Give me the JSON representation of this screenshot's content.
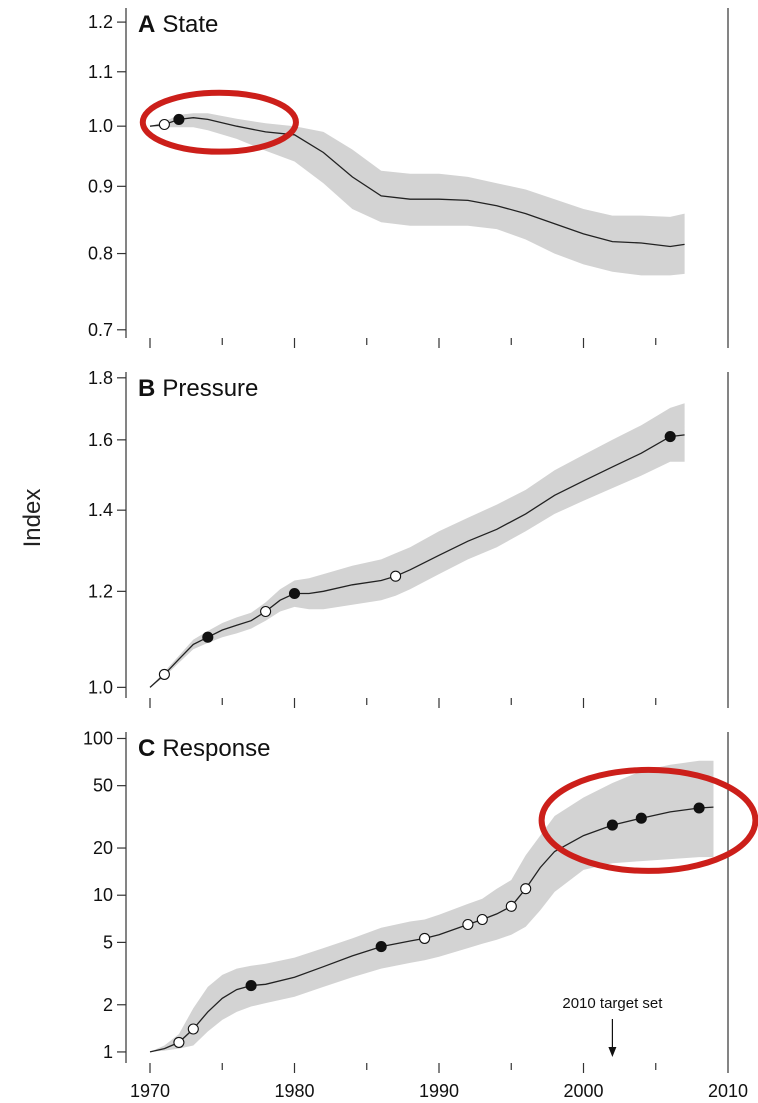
{
  "figure": {
    "ylabel": "Index"
  },
  "colors": {
    "band": "#d3d3d3",
    "line": "#222222",
    "marker": "#111111",
    "highlight": "#cc1f1a"
  },
  "x_axis": {
    "range": [
      1970,
      2010
    ],
    "ticks": [
      1970,
      1980,
      1990,
      2000,
      2010
    ]
  },
  "chart_data": [
    {
      "type": "line",
      "letter": "A",
      "title": "State",
      "yscale": "log",
      "ylim": [
        0.69,
        1.23
      ],
      "yticks": [
        0.7,
        0.8,
        0.9,
        1.0,
        1.1,
        1.2
      ],
      "ytick_labels": [
        "0.7",
        "0.8",
        "0.9",
        "1.0",
        "1.1",
        "1.2"
      ],
      "series": [
        {
          "x": [
            1970,
            1971,
            1972,
            1973,
            1974,
            1976,
            1978,
            1980,
            1982,
            1984,
            1986,
            1988,
            1990,
            1992,
            1994,
            1996,
            1998,
            2000,
            2002,
            2004,
            2006,
            2007
          ],
          "y": [
            1.0,
            1.003,
            1.012,
            1.015,
            1.012,
            1.0,
            0.99,
            0.985,
            0.955,
            0.915,
            0.885,
            0.88,
            0.88,
            0.878,
            0.87,
            0.858,
            0.843,
            0.828,
            0.817,
            0.815,
            0.81,
            0.813
          ],
          "lower": [
            1.0,
            0.998,
            0.998,
            0.998,
            0.993,
            0.978,
            0.958,
            0.94,
            0.905,
            0.865,
            0.845,
            0.84,
            0.84,
            0.84,
            0.835,
            0.82,
            0.8,
            0.785,
            0.775,
            0.77,
            0.77,
            0.772
          ],
          "upper": [
            1.0,
            1.008,
            1.02,
            1.023,
            1.023,
            1.013,
            1.005,
            1.0,
            0.99,
            0.96,
            0.925,
            0.92,
            0.92,
            0.915,
            0.905,
            0.895,
            0.88,
            0.865,
            0.855,
            0.855,
            0.853,
            0.858
          ]
        }
      ],
      "points": [
        {
          "x": 1971,
          "y": 1.003,
          "filled": false
        },
        {
          "x": 1972,
          "y": 1.012,
          "filled": true
        }
      ],
      "highlights": [
        {
          "cx": 1974.8,
          "cy": 1.007,
          "rx": 5.3,
          "ry_factor": 1.053
        }
      ],
      "annotations": []
    },
    {
      "type": "line",
      "letter": "B",
      "title": "Pressure",
      "yscale": "log",
      "ylim": [
        0.98,
        1.82
      ],
      "yticks": [
        1.0,
        1.2,
        1.4,
        1.6,
        1.8
      ],
      "ytick_labels": [
        "1.0",
        "1.2",
        "1.4",
        "1.6",
        "1.8"
      ],
      "series": [
        {
          "x": [
            1970,
            1971,
            1972,
            1973,
            1974,
            1975,
            1976,
            1977,
            1978,
            1979,
            1980,
            1981,
            1982,
            1984,
            1986,
            1987,
            1988,
            1990,
            1992,
            1994,
            1996,
            1998,
            2000,
            2002,
            2004,
            2006,
            2007
          ],
          "y": [
            1.0,
            1.025,
            1.055,
            1.085,
            1.1,
            1.115,
            1.125,
            1.135,
            1.155,
            1.18,
            1.195,
            1.195,
            1.2,
            1.215,
            1.225,
            1.235,
            1.25,
            1.285,
            1.32,
            1.35,
            1.39,
            1.44,
            1.48,
            1.52,
            1.56,
            1.61,
            1.615
          ],
          "lower": [
            1.0,
            1.02,
            1.048,
            1.075,
            1.088,
            1.1,
            1.108,
            1.118,
            1.135,
            1.155,
            1.165,
            1.16,
            1.16,
            1.17,
            1.18,
            1.19,
            1.205,
            1.24,
            1.275,
            1.305,
            1.345,
            1.39,
            1.425,
            1.46,
            1.495,
            1.535,
            1.535
          ],
          "upper": [
            1.0,
            1.03,
            1.062,
            1.095,
            1.113,
            1.13,
            1.142,
            1.152,
            1.175,
            1.205,
            1.225,
            1.23,
            1.24,
            1.26,
            1.275,
            1.29,
            1.305,
            1.345,
            1.38,
            1.415,
            1.455,
            1.51,
            1.555,
            1.6,
            1.645,
            1.7,
            1.715
          ]
        }
      ],
      "points": [
        {
          "x": 1971,
          "y": 1.025,
          "filled": false
        },
        {
          "x": 1974,
          "y": 1.1,
          "filled": true
        },
        {
          "x": 1978,
          "y": 1.155,
          "filled": false
        },
        {
          "x": 1980,
          "y": 1.195,
          "filled": true
        },
        {
          "x": 1987,
          "y": 1.235,
          "filled": false
        },
        {
          "x": 2006,
          "y": 1.61,
          "filled": true
        }
      ],
      "highlights": [],
      "annotations": []
    },
    {
      "type": "line",
      "letter": "C",
      "title": "Response",
      "yscale": "log",
      "ylim": [
        0.85,
        110
      ],
      "yticks": [
        1,
        2,
        5,
        10,
        20,
        50,
        100
      ],
      "ytick_labels": [
        "1",
        "2",
        "5",
        "10",
        "20",
        "50",
        "100"
      ],
      "series": [
        {
          "x": [
            1970,
            1971,
            1972,
            1973,
            1974,
            1975,
            1976,
            1977,
            1978,
            1980,
            1982,
            1984,
            1986,
            1988,
            1989,
            1990,
            1992,
            1993,
            1994,
            1995,
            1996,
            1997,
            1998,
            2000,
            2002,
            2004,
            2006,
            2008,
            2009
          ],
          "y": [
            1.0,
            1.05,
            1.15,
            1.4,
            1.8,
            2.2,
            2.5,
            2.65,
            2.7,
            3.0,
            3.5,
            4.1,
            4.7,
            5.1,
            5.3,
            5.6,
            6.5,
            7.0,
            7.6,
            8.5,
            11.0,
            15,
            19,
            24,
            28,
            31,
            34,
            36,
            36.5
          ],
          "lower": [
            1.0,
            1.02,
            1.05,
            1.1,
            1.35,
            1.6,
            1.8,
            1.95,
            2.05,
            2.25,
            2.6,
            3.0,
            3.4,
            3.7,
            3.85,
            4.05,
            4.6,
            4.9,
            5.2,
            5.6,
            6.3,
            8,
            10.5,
            14.5,
            16,
            16.5,
            17,
            17.5,
            17.5
          ],
          "upper": [
            1.0,
            1.1,
            1.3,
            1.9,
            2.6,
            3.1,
            3.4,
            3.55,
            3.65,
            4.0,
            4.6,
            5.3,
            6.2,
            6.8,
            7.0,
            7.5,
            8.8,
            9.5,
            11,
            12.5,
            18,
            24,
            32,
            42,
            52,
            62,
            68,
            72,
            72
          ]
        }
      ],
      "points": [
        {
          "x": 1972,
          "y": 1.15,
          "filled": false
        },
        {
          "x": 1973,
          "y": 1.4,
          "filled": false
        },
        {
          "x": 1977,
          "y": 2.65,
          "filled": true
        },
        {
          "x": 1986,
          "y": 4.7,
          "filled": true
        },
        {
          "x": 1989,
          "y": 5.3,
          "filled": false
        },
        {
          "x": 1992,
          "y": 6.5,
          "filled": false
        },
        {
          "x": 1993,
          "y": 7.0,
          "filled": false
        },
        {
          "x": 1995,
          "y": 8.5,
          "filled": false
        },
        {
          "x": 1996,
          "y": 11.0,
          "filled": false
        },
        {
          "x": 2002,
          "y": 28,
          "filled": true
        },
        {
          "x": 2004,
          "y": 31,
          "filled": true
        },
        {
          "x": 2008,
          "y": 36,
          "filled": true
        }
      ],
      "highlights": [
        {
          "cx": 2004.5,
          "cy": 30,
          "rx": 7.4,
          "ry_factor": 2.1
        }
      ],
      "annotations": [
        {
          "text": "2010 target set",
          "x": 2002
        }
      ]
    }
  ]
}
